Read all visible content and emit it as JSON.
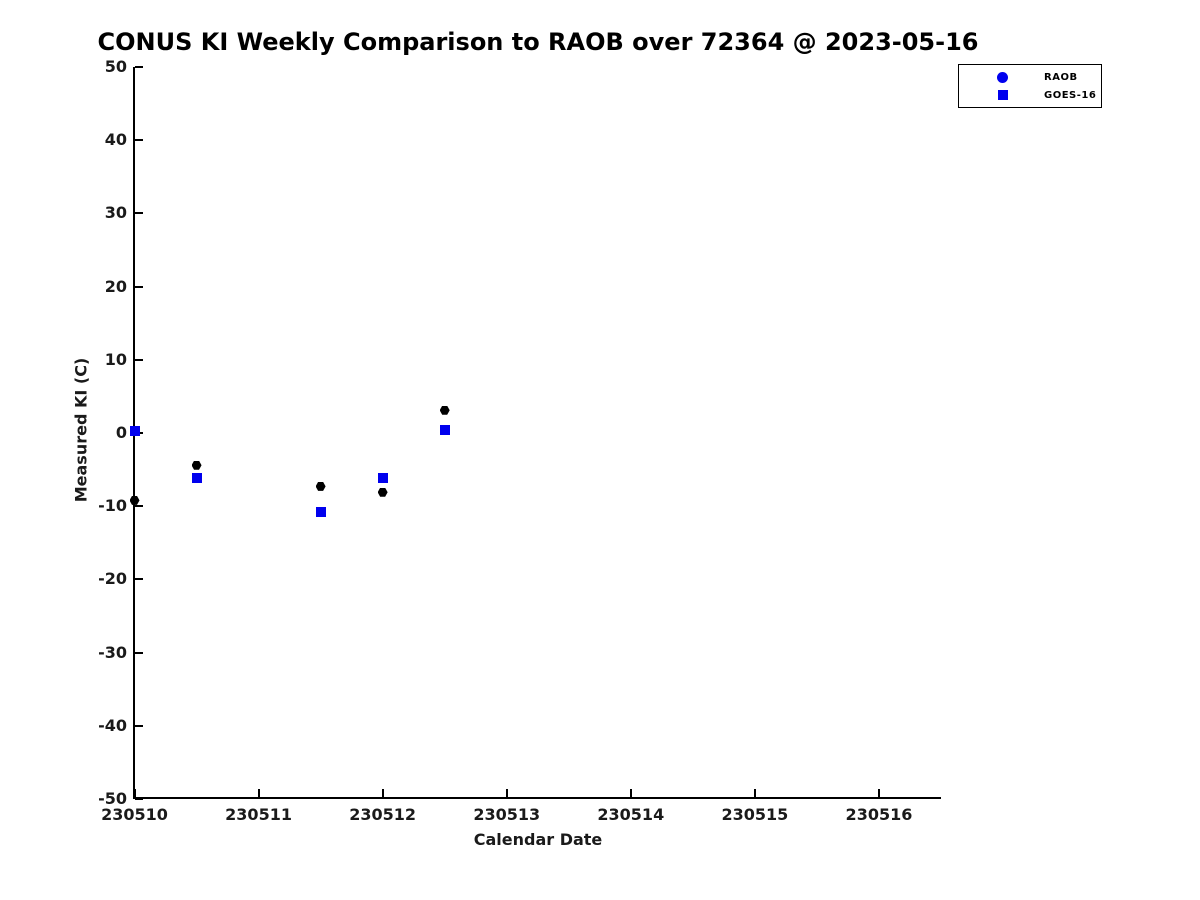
{
  "chart_data": {
    "type": "scatter",
    "title": "CONUS KI Weekly Comparison to RAOB over 72364 @ 2023-05-16",
    "xlabel": "Calendar Date",
    "ylabel": "Measured KI (C)",
    "xlim": [
      230510,
      230516.5
    ],
    "ylim": [
      -50,
      50
    ],
    "x_ticks": [
      230510,
      230511,
      230512,
      230513,
      230514,
      230515,
      230516
    ],
    "y_ticks": [
      50,
      40,
      30,
      20,
      10,
      0,
      -10,
      -20,
      -30,
      -40,
      -50
    ],
    "grid": false,
    "background_color": "#ffffff",
    "axis_color": "#000000",
    "accent_blue": "#0000ee",
    "legend_position": "outside-top-right",
    "legend": [
      {
        "label": "RAOB",
        "marker": "circle-icon",
        "color": "#0000ee"
      },
      {
        "label": "GOES-16",
        "marker": "square-icon",
        "color": "#0000ee"
      }
    ],
    "series": [
      {
        "name": "RAOB",
        "marker": "hexagon",
        "color": "#000000",
        "points": [
          {
            "x": 230510.0,
            "y": -9.2
          },
          {
            "x": 230510.5,
            "y": -4.4
          },
          {
            "x": 230511.5,
            "y": -7.3
          },
          {
            "x": 230512.0,
            "y": -8.1
          },
          {
            "x": 230512.5,
            "y": 3.1
          }
        ]
      },
      {
        "name": "GOES-16",
        "marker": "square",
        "color": "#0000ee",
        "points": [
          {
            "x": 230510.0,
            "y": 0.3
          },
          {
            "x": 230510.5,
            "y": -6.1
          },
          {
            "x": 230511.5,
            "y": -10.8
          },
          {
            "x": 230512.0,
            "y": -6.1
          },
          {
            "x": 230512.5,
            "y": 0.4
          }
        ]
      }
    ]
  }
}
